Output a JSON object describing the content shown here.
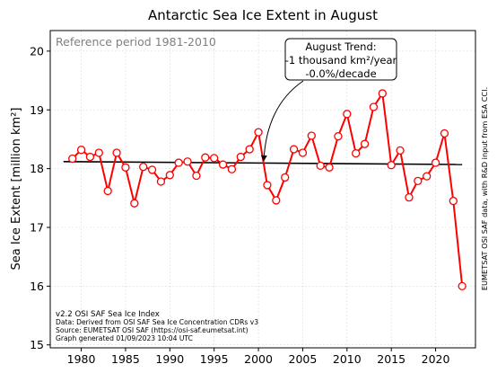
{
  "chart_data": {
    "type": "line",
    "title": "Antarctic Sea Ice Extent in August",
    "ylabel": "Sea Ice Extent [million km²]",
    "xlabel": "",
    "xlim": [
      1976.5,
      2024.5
    ],
    "ylim": [
      14.95,
      20.35
    ],
    "xticks": [
      1980,
      1985,
      1990,
      1995,
      2000,
      2005,
      2010,
      2015,
      2020
    ],
    "yticks": [
      15,
      16,
      17,
      18,
      19,
      20
    ],
    "grid": true,
    "reference_note": "Reference period 1981-2010",
    "series": [
      {
        "color": "#ff0000",
        "marker": "open-circle",
        "x": [
          1979,
          1980,
          1981,
          1982,
          1983,
          1984,
          1985,
          1986,
          1987,
          1988,
          1989,
          1990,
          1991,
          1992,
          1993,
          1994,
          1995,
          1996,
          1997,
          1998,
          1999,
          2000,
          2001,
          2002,
          2003,
          2004,
          2005,
          2006,
          2007,
          2008,
          2009,
          2010,
          2011,
          2012,
          2013,
          2014,
          2015,
          2016,
          2017,
          2018,
          2019,
          2020,
          2021,
          2022,
          2023
        ],
        "y": [
          18.17,
          18.32,
          18.2,
          18.27,
          17.62,
          18.27,
          18.02,
          17.41,
          18.03,
          17.98,
          17.78,
          17.89,
          18.1,
          18.12,
          17.88,
          18.19,
          18.18,
          18.07,
          17.99,
          18.2,
          18.33,
          18.62,
          17.72,
          17.46,
          17.85,
          18.33,
          18.27,
          18.56,
          18.05,
          18.02,
          18.55,
          18.93,
          18.26,
          18.42,
          19.05,
          19.28,
          18.06,
          18.31,
          17.51,
          17.79,
          17.87,
          18.1,
          18.6,
          17.45,
          16.0
        ]
      }
    ],
    "trend": {
      "color": "#000000",
      "x": [
        1978,
        2023
      ],
      "y": [
        18.12,
        18.07
      ]
    },
    "annotation": {
      "lines": [
        "August Trend:",
        "-1 thousand km²/year",
        "-0.0%/decade"
      ],
      "points_to": [
        2000.6,
        18.1
      ]
    },
    "info_lines": [
      "v2.2 OSI SAF Sea Ice Index",
      "Data: Derived from OSI SAF Sea Ice Concentration CDRs v3",
      "Source: EUMETSAT OSI SAF (https://osi-saf.eumetsat.int)",
      "Graph generated 01/09/2023 10:04 UTC"
    ],
    "side_note": "EUMETSAT OSI SAF data, with R&D input from ESA CCI."
  }
}
